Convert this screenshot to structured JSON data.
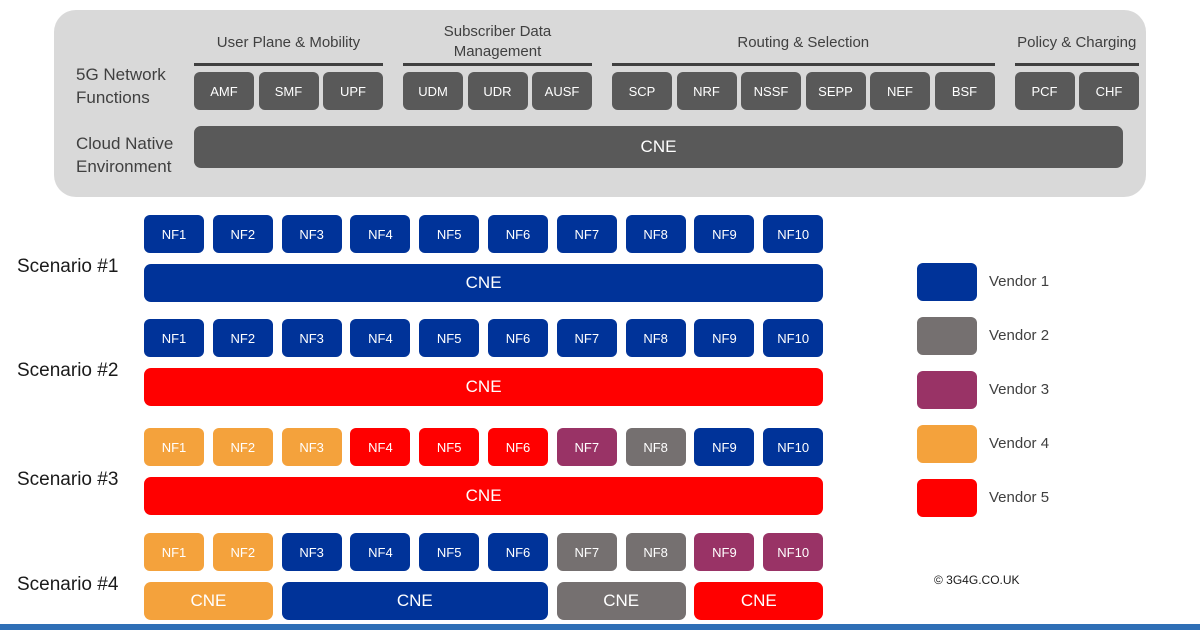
{
  "colors": {
    "vendor1": "#003399",
    "vendor2": "#757070",
    "vendor3": "#993366",
    "vendor4": "#f4a23c",
    "vendor5": "#ff0000",
    "function_box": "#595959",
    "panel": "#d9d9d9"
  },
  "top": {
    "row1_label": "5G Network\nFunctions",
    "row2_label": "Cloud Native\nEnvironment",
    "groups": [
      {
        "label": "User Plane & Mobility",
        "items": [
          "AMF",
          "SMF",
          "UPF"
        ]
      },
      {
        "label": "Subscriber Data\nManagement",
        "items": [
          "UDM",
          "UDR",
          "AUSF"
        ]
      },
      {
        "label": "Routing & Selection",
        "items": [
          "SCP",
          "NRF",
          "NSSF",
          "SEPP",
          "NEF",
          "BSF"
        ]
      },
      {
        "label": "Policy & Charging",
        "items": [
          "PCF",
          "CHF"
        ]
      }
    ],
    "cne_label": "CNE"
  },
  "scenarios": [
    {
      "label": "Scenario #1",
      "nfs": [
        {
          "label": "NF1",
          "vendor": "vendor1"
        },
        {
          "label": "NF2",
          "vendor": "vendor1"
        },
        {
          "label": "NF3",
          "vendor": "vendor1"
        },
        {
          "label": "NF4",
          "vendor": "vendor1"
        },
        {
          "label": "NF5",
          "vendor": "vendor1"
        },
        {
          "label": "NF6",
          "vendor": "vendor1"
        },
        {
          "label": "NF7",
          "vendor": "vendor1"
        },
        {
          "label": "NF8",
          "vendor": "vendor1"
        },
        {
          "label": "NF9",
          "vendor": "vendor1"
        },
        {
          "label": "NF10",
          "vendor": "vendor1"
        }
      ],
      "cnes": [
        {
          "label": "CNE",
          "vendor": "vendor1",
          "span": [
            1,
            10
          ]
        }
      ]
    },
    {
      "label": "Scenario #2",
      "nfs": [
        {
          "label": "NF1",
          "vendor": "vendor1"
        },
        {
          "label": "NF2",
          "vendor": "vendor1"
        },
        {
          "label": "NF3",
          "vendor": "vendor1"
        },
        {
          "label": "NF4",
          "vendor": "vendor1"
        },
        {
          "label": "NF5",
          "vendor": "vendor1"
        },
        {
          "label": "NF6",
          "vendor": "vendor1"
        },
        {
          "label": "NF7",
          "vendor": "vendor1"
        },
        {
          "label": "NF8",
          "vendor": "vendor1"
        },
        {
          "label": "NF9",
          "vendor": "vendor1"
        },
        {
          "label": "NF10",
          "vendor": "vendor1"
        }
      ],
      "cnes": [
        {
          "label": "CNE",
          "vendor": "vendor5",
          "span": [
            1,
            10
          ]
        }
      ]
    },
    {
      "label": "Scenario #3",
      "nfs": [
        {
          "label": "NF1",
          "vendor": "vendor4"
        },
        {
          "label": "NF2",
          "vendor": "vendor4"
        },
        {
          "label": "NF3",
          "vendor": "vendor4"
        },
        {
          "label": "NF4",
          "vendor": "vendor5"
        },
        {
          "label": "NF5",
          "vendor": "vendor5"
        },
        {
          "label": "NF6",
          "vendor": "vendor5"
        },
        {
          "label": "NF7",
          "vendor": "vendor3"
        },
        {
          "label": "NF8",
          "vendor": "vendor2"
        },
        {
          "label": "NF9",
          "vendor": "vendor1"
        },
        {
          "label": "NF10",
          "vendor": "vendor1"
        }
      ],
      "cnes": [
        {
          "label": "CNE",
          "vendor": "vendor5",
          "span": [
            1,
            10
          ]
        }
      ]
    },
    {
      "label": "Scenario #4",
      "nfs": [
        {
          "label": "NF1",
          "vendor": "vendor4"
        },
        {
          "label": "NF2",
          "vendor": "vendor4"
        },
        {
          "label": "NF3",
          "vendor": "vendor1"
        },
        {
          "label": "NF4",
          "vendor": "vendor1"
        },
        {
          "label": "NF5",
          "vendor": "vendor1"
        },
        {
          "label": "NF6",
          "vendor": "vendor1"
        },
        {
          "label": "NF7",
          "vendor": "vendor2"
        },
        {
          "label": "NF8",
          "vendor": "vendor2"
        },
        {
          "label": "NF9",
          "vendor": "vendor3"
        },
        {
          "label": "NF10",
          "vendor": "vendor3"
        }
      ],
      "cnes": [
        {
          "label": "CNE",
          "vendor": "vendor4",
          "span": [
            1,
            2
          ]
        },
        {
          "label": "CNE",
          "vendor": "vendor1",
          "span": [
            3,
            6
          ]
        },
        {
          "label": "CNE",
          "vendor": "vendor2",
          "span": [
            7,
            8
          ]
        },
        {
          "label": "CNE",
          "vendor": "vendor5",
          "span": [
            9,
            10
          ]
        }
      ]
    }
  ],
  "legend": [
    {
      "label": "Vendor 1",
      "vendor": "vendor1"
    },
    {
      "label": "Vendor 2",
      "vendor": "vendor2"
    },
    {
      "label": "Vendor 3",
      "vendor": "vendor3"
    },
    {
      "label": "Vendor 4",
      "vendor": "vendor4"
    },
    {
      "label": "Vendor 5",
      "vendor": "vendor5"
    }
  ],
  "copyright": "© 3G4G.CO.UK"
}
